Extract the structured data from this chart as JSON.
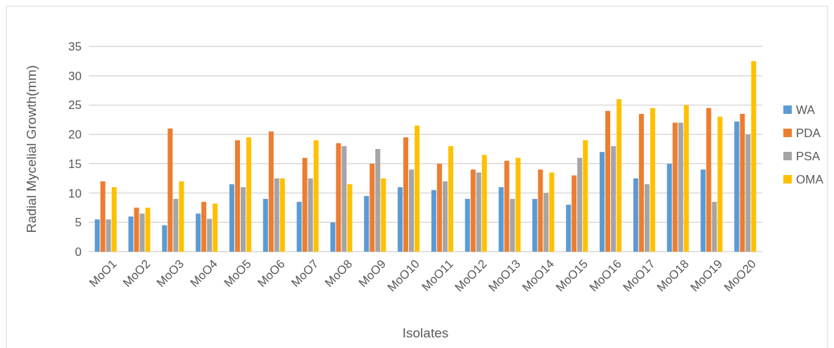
{
  "chart_data": {
    "type": "bar",
    "xlabel": "Isolates",
    "ylabel": "Radial Mycelial Growth(mm)",
    "categories": [
      "MoO1",
      "MoO2",
      "MoO3",
      "MoO4",
      "MoO5",
      "MoO6",
      "MoO7",
      "MoO8",
      "MoO9",
      "MoO10",
      "MoO11",
      "MoO12",
      "MoO13",
      "MoO14",
      "MoO15",
      "MoO16",
      "MoO17",
      "MoO18",
      "MoO19",
      "MoO20"
    ],
    "series": [
      {
        "name": "WA",
        "color": "#5b9bd5",
        "values": [
          5.5,
          6,
          4.5,
          6.5,
          11.5,
          9,
          8.5,
          5,
          9.5,
          11,
          10.5,
          9,
          11,
          9,
          8,
          17,
          12.5,
          15,
          14,
          22.2
        ]
      },
      {
        "name": "PDA",
        "color": "#ed7d31",
        "values": [
          12,
          7.5,
          21,
          8.5,
          19,
          20.5,
          16,
          18.5,
          15,
          19.5,
          15,
          14,
          15.5,
          14,
          13,
          24,
          23.5,
          22,
          24.5,
          23.5
        ]
      },
      {
        "name": "PSA",
        "color": "#a5a5a5",
        "values": [
          5.5,
          6.5,
          9,
          5.6,
          11,
          12.5,
          12.5,
          18,
          17.5,
          14,
          12,
          13.5,
          9,
          10,
          16,
          18,
          11.5,
          22,
          8.5,
          20
        ]
      },
      {
        "name": "OMA",
        "color": "#ffc000",
        "values": [
          11,
          7.5,
          12,
          8.2,
          19.5,
          12.5,
          19,
          11.5,
          12.5,
          21.5,
          18,
          16.5,
          16,
          13.5,
          19,
          26,
          24.5,
          25,
          23,
          32.5
        ]
      }
    ],
    "ylim": [
      0,
      35
    ],
    "yticks": [
      0,
      5,
      10,
      15,
      20,
      25,
      30,
      35
    ],
    "grid": "y",
    "legend": "right"
  }
}
